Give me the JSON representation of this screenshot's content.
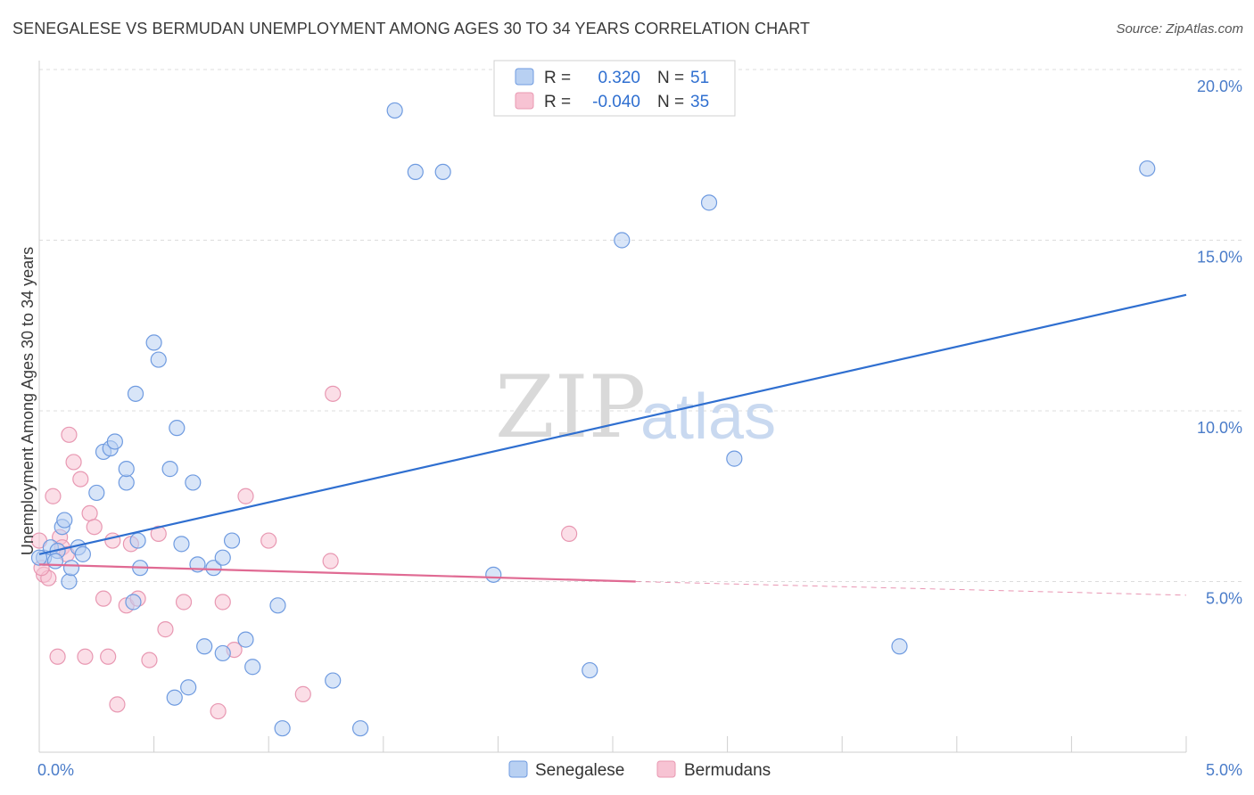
{
  "title": "SENEGALESE VS BERMUDAN UNEMPLOYMENT AMONG AGES 30 TO 34 YEARS CORRELATION CHART",
  "source": "Source: ZipAtlas.com",
  "watermark": {
    "zip": "ZIP",
    "atlas": "atlas"
  },
  "colors": {
    "senegalese_fill": "#b8d0f2",
    "senegalese_stroke": "#6f9be0",
    "senegalese_line": "#2f6fd0",
    "bermudan_fill": "#f7c3d3",
    "bermudan_stroke": "#e898b2",
    "bermudan_line": "#e06a93",
    "grid": "#dcdcdc",
    "tick_text": "#4a7cc9"
  },
  "legend": {
    "rows": [
      {
        "r_label": "R =",
        "r_value": "0.320",
        "n_label": "N =",
        "n_value": "51"
      },
      {
        "r_label": "R =",
        "r_value": "-0.040",
        "n_label": "N =",
        "n_value": "35"
      }
    ]
  },
  "chart_data": {
    "type": "scatter",
    "title": "SENEGALESE VS BERMUDAN UNEMPLOYMENT AMONG AGES 30 TO 34 YEARS CORRELATION CHART",
    "xlabel": "",
    "ylabel": "Unemployment Among Ages 30 to 34 years",
    "xlim": [
      0,
      5.0
    ],
    "ylim": [
      0,
      20.0
    ],
    "x_tick_labels": [
      "0.0%",
      "5.0%"
    ],
    "y_ticks": [
      5,
      10,
      15,
      20
    ],
    "y_tick_labels": [
      "5.0%",
      "10.0%",
      "15.0%",
      "20.0%"
    ],
    "grid": true,
    "legend_placement": "top-center",
    "series": [
      {
        "name": "Senegalese",
        "r": 0.32,
        "n": 51,
        "trend": {
          "x": [
            0.0,
            5.0
          ],
          "y": [
            5.8,
            13.4
          ]
        },
        "points": [
          [
            0.02,
            5.7
          ],
          [
            0.05,
            6.0
          ],
          [
            0.08,
            5.9
          ],
          [
            0.1,
            6.6
          ],
          [
            0.11,
            6.8
          ],
          [
            0.13,
            5.0
          ],
          [
            0.14,
            5.4
          ],
          [
            0.17,
            6.0
          ],
          [
            0.19,
            5.8
          ],
          [
            0.25,
            7.6
          ],
          [
            0.28,
            8.8
          ],
          [
            0.31,
            8.9
          ],
          [
            0.33,
            9.1
          ],
          [
            0.38,
            7.9
          ],
          [
            0.38,
            8.3
          ],
          [
            0.41,
            4.4
          ],
          [
            0.42,
            10.5
          ],
          [
            0.43,
            6.2
          ],
          [
            0.44,
            5.4
          ],
          [
            0.5,
            12.0
          ],
          [
            0.52,
            11.5
          ],
          [
            0.57,
            8.3
          ],
          [
            0.59,
            1.6
          ],
          [
            0.6,
            9.5
          ],
          [
            0.62,
            6.1
          ],
          [
            0.65,
            1.9
          ],
          [
            0.67,
            7.9
          ],
          [
            0.69,
            5.5
          ],
          [
            0.72,
            3.1
          ],
          [
            0.76,
            5.4
          ],
          [
            0.8,
            2.9
          ],
          [
            0.8,
            5.7
          ],
          [
            0.84,
            6.2
          ],
          [
            0.9,
            3.3
          ],
          [
            0.93,
            2.5
          ],
          [
            1.04,
            4.3
          ],
          [
            1.06,
            0.7
          ],
          [
            1.28,
            2.1
          ],
          [
            1.4,
            0.7
          ],
          [
            1.55,
            18.8
          ],
          [
            1.64,
            17.0
          ],
          [
            1.76,
            17.0
          ],
          [
            1.98,
            5.2
          ],
          [
            2.4,
            2.4
          ],
          [
            2.54,
            15.0
          ],
          [
            2.92,
            16.1
          ],
          [
            3.03,
            8.6
          ],
          [
            3.75,
            3.1
          ],
          [
            4.83,
            17.1
          ],
          [
            0.07,
            5.6
          ],
          [
            0.0,
            5.7
          ]
        ]
      },
      {
        "name": "Bermudans",
        "r": -0.04,
        "n": 35,
        "trend": {
          "x": [
            0.0,
            2.6
          ],
          "y": [
            5.5,
            5.0
          ]
        },
        "trend_dashed": {
          "x": [
            2.6,
            5.0
          ],
          "y": [
            5.0,
            4.6
          ]
        },
        "points": [
          [
            0.02,
            5.2
          ],
          [
            0.04,
            5.1
          ],
          [
            0.06,
            7.5
          ],
          [
            0.08,
            2.8
          ],
          [
            0.09,
            6.3
          ],
          [
            0.1,
            6.0
          ],
          [
            0.12,
            5.8
          ],
          [
            0.13,
            9.3
          ],
          [
            0.15,
            8.5
          ],
          [
            0.18,
            8.0
          ],
          [
            0.2,
            2.8
          ],
          [
            0.22,
            7.0
          ],
          [
            0.24,
            6.6
          ],
          [
            0.28,
            4.5
          ],
          [
            0.3,
            2.8
          ],
          [
            0.32,
            6.2
          ],
          [
            0.34,
            1.4
          ],
          [
            0.38,
            4.3
          ],
          [
            0.4,
            6.1
          ],
          [
            0.43,
            4.5
          ],
          [
            0.48,
            2.7
          ],
          [
            0.52,
            6.4
          ],
          [
            0.55,
            3.6
          ],
          [
            0.63,
            4.4
          ],
          [
            0.78,
            1.2
          ],
          [
            0.8,
            4.4
          ],
          [
            0.85,
            3.0
          ],
          [
            0.9,
            7.5
          ],
          [
            1.0,
            6.2
          ],
          [
            1.15,
            1.7
          ],
          [
            1.27,
            5.6
          ],
          [
            1.28,
            10.5
          ],
          [
            2.31,
            6.4
          ],
          [
            0.0,
            6.2
          ],
          [
            0.01,
            5.4
          ]
        ]
      }
    ]
  },
  "bottom_legend": [
    "Senegalese",
    "Bermudans"
  ]
}
